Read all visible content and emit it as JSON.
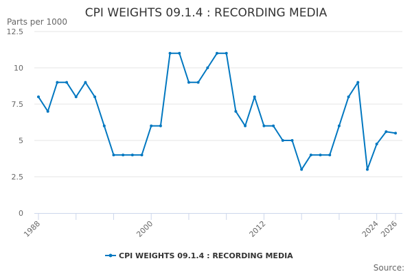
{
  "chart_data": {
    "type": "line",
    "title": "CPI WEIGHTS 09.1.4 : RECORDING MEDIA",
    "ylabel": "Parts per 1000",
    "xlabel": "",
    "ylim": [
      0,
      12.5
    ],
    "yticks": [
      "0",
      "2.5",
      "5",
      "7.5",
      "10",
      "12.5"
    ],
    "ytick_values": [
      0,
      2.5,
      5,
      7.5,
      10,
      12.5
    ],
    "xlim": [
      1988,
      2026
    ],
    "xtick_labels": [
      "1988",
      "2000",
      "2012",
      "2024",
      "2026"
    ],
    "xtick_years": [
      1988,
      1992,
      1996,
      2000,
      2004,
      2008,
      2012,
      2016,
      2020,
      2024,
      2026
    ],
    "grid": true,
    "legend_position": "bottom",
    "series": [
      {
        "name": "CPI WEIGHTS 09.1.4 : RECORDING MEDIA",
        "color": "#0077c0",
        "x": [
          1988,
          1989,
          1990,
          1991,
          1992,
          1993,
          1994,
          1995,
          1996,
          1997,
          1998,
          1999,
          2000,
          2001,
          2002,
          2003,
          2004,
          2005,
          2006,
          2007,
          2008,
          2009,
          2010,
          2011,
          2012,
          2013,
          2014,
          2015,
          2016,
          2017,
          2018,
          2019,
          2020,
          2021,
          2022,
          2023,
          2024,
          2025,
          2026
        ],
        "values": [
          8,
          7,
          9,
          9,
          8,
          9,
          8,
          6,
          4,
          4,
          4,
          4,
          6,
          6,
          11,
          11,
          9,
          9,
          10,
          11,
          11,
          7,
          6,
          8,
          6,
          6,
          5,
          5,
          3,
          4,
          4,
          4,
          6,
          8,
          9,
          3,
          4.75,
          5.6,
          5.5
        ]
      }
    ],
    "source_label": "Source:"
  }
}
